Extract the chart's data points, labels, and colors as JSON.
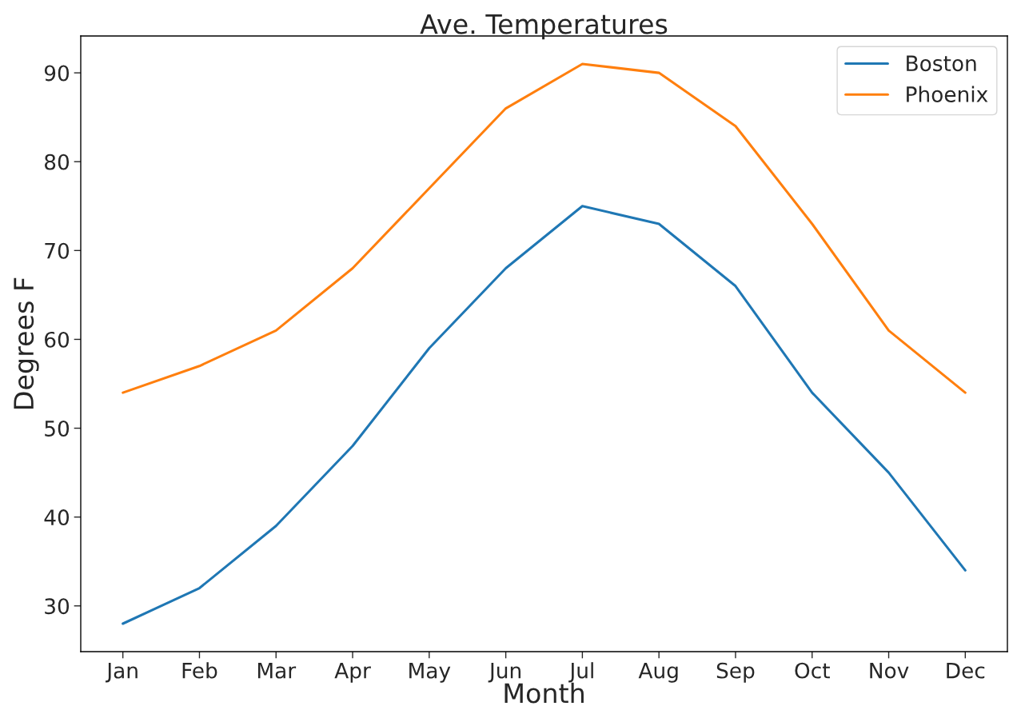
{
  "chart_data": {
    "type": "line",
    "title": "Ave. Temperatures",
    "xlabel": "Month",
    "ylabel": "Degrees F",
    "categories": [
      "Jan",
      "Feb",
      "Mar",
      "Apr",
      "May",
      "Jun",
      "Jul",
      "Aug",
      "Sep",
      "Oct",
      "Nov",
      "Dec"
    ],
    "series": [
      {
        "name": "Boston",
        "color": "#1f77b4",
        "values": [
          28,
          32,
          39,
          48,
          59,
          68,
          75,
          73,
          66,
          54,
          45,
          34
        ]
      },
      {
        "name": "Phoenix",
        "color": "#ff7f0e",
        "values": [
          54,
          57,
          61,
          68,
          77,
          86,
          91,
          90,
          84,
          73,
          61,
          54
        ]
      }
    ],
    "ylim": [
      24.85,
      94.15
    ],
    "yticks": [
      30,
      40,
      50,
      60,
      70,
      80,
      90
    ],
    "grid": false,
    "legend": "top right",
    "marker": "none",
    "line_style": "solid"
  }
}
